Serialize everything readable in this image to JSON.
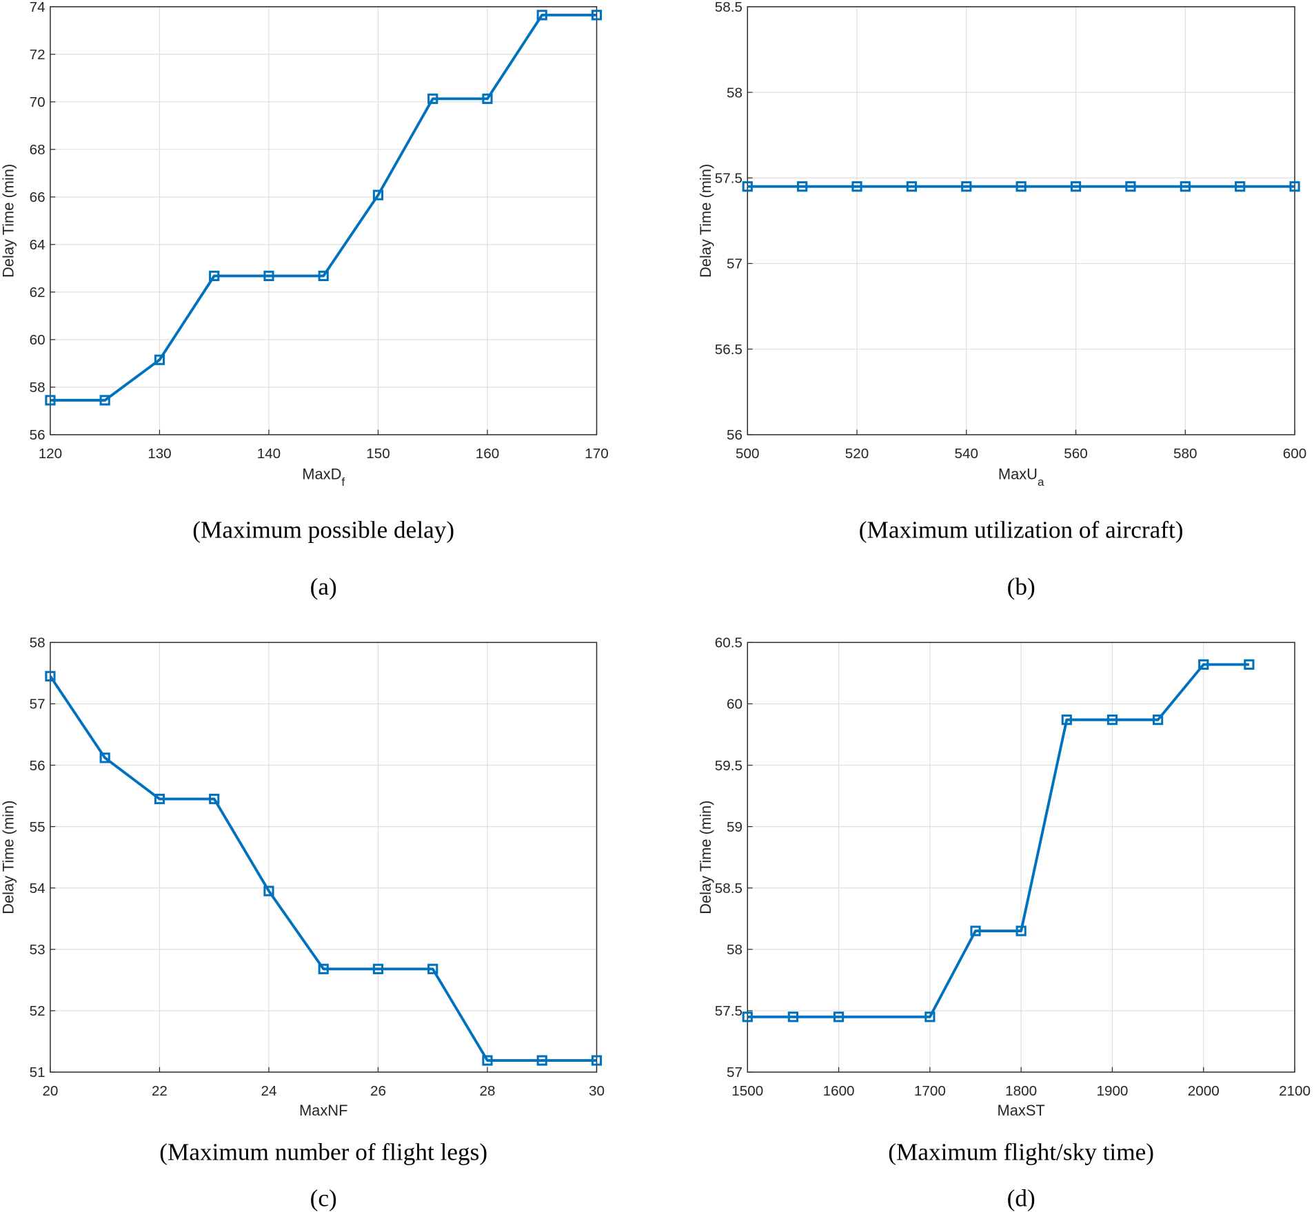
{
  "chart_data": [
    {
      "type": "line",
      "xlabel": "MaxD",
      "xlabel_subscript": "f",
      "ylabel": "Delay Time (min)",
      "caption": "(Maximum possible delay)",
      "label": "(a)",
      "x": [
        120,
        125,
        130,
        135,
        140,
        145,
        150,
        155,
        160,
        165,
        170
      ],
      "values": [
        57.45,
        57.45,
        59.15,
        62.68,
        62.68,
        62.68,
        66.08,
        70.13,
        70.13,
        73.65,
        73.65
      ],
      "color": "#0072bd",
      "xlim": [
        120,
        170
      ],
      "xticks": [
        120,
        130,
        140,
        150,
        160,
        170
      ],
      "ylim": [
        56,
        74
      ],
      "yticks": [
        56,
        58,
        60,
        62,
        64,
        66,
        68,
        70,
        72,
        74
      ],
      "grid": true
    },
    {
      "type": "line",
      "xlabel": "MaxU",
      "xlabel_subscript": "a",
      "ylabel": "Delay Time (min)",
      "caption": "(Maximum utilization of aircraft)",
      "label": "(b)",
      "x": [
        500,
        510,
        520,
        530,
        540,
        550,
        560,
        570,
        580,
        590,
        600
      ],
      "values": [
        57.45,
        57.45,
        57.45,
        57.45,
        57.45,
        57.45,
        57.45,
        57.45,
        57.45,
        57.45,
        57.45
      ],
      "color": "#0072bd",
      "xlim": [
        500,
        600
      ],
      "xticks": [
        500,
        520,
        540,
        560,
        580,
        600
      ],
      "ylim": [
        56,
        58.5
      ],
      "yticks": [
        56,
        56.5,
        57,
        57.5,
        58,
        58.5
      ],
      "grid": true
    },
    {
      "type": "line",
      "xlabel": "MaxNF",
      "ylabel": "Delay Time (min)",
      "caption": "(Maximum number of flight legs)",
      "label": "(c)",
      "x": [
        20,
        21,
        22,
        23,
        24,
        25,
        26,
        27,
        28,
        29,
        30
      ],
      "values": [
        57.45,
        56.12,
        55.45,
        55.45,
        53.95,
        52.68,
        52.68,
        52.68,
        51.19,
        51.19,
        51.19
      ],
      "color": "#0072bd",
      "xlim": [
        20,
        30
      ],
      "xticks": [
        20,
        22,
        24,
        26,
        28,
        30
      ],
      "ylim": [
        51,
        58
      ],
      "yticks": [
        51,
        52,
        53,
        54,
        55,
        56,
        57,
        58
      ],
      "grid": true
    },
    {
      "type": "line",
      "xlabel": "MaxST",
      "ylabel": "Delay Time (min)",
      "caption": "(Maximum flight/sky time)",
      "label": "(d)",
      "x": [
        1500,
        1550,
        1600,
        1700,
        1750,
        1800,
        1850,
        1900,
        1950,
        2000,
        2050
      ],
      "values": [
        57.45,
        57.45,
        57.45,
        57.45,
        58.15,
        58.15,
        59.87,
        59.87,
        59.87,
        60.32,
        60.32
      ],
      "color": "#0072bd",
      "xlim": [
        1500,
        2100
      ],
      "xticks": [
        1500,
        1600,
        1700,
        1800,
        1900,
        2000,
        2100
      ],
      "ylim": [
        57,
        60.5
      ],
      "yticks": [
        57,
        57.5,
        58,
        58.5,
        59,
        59.5,
        60,
        60.5
      ],
      "grid": true
    }
  ]
}
